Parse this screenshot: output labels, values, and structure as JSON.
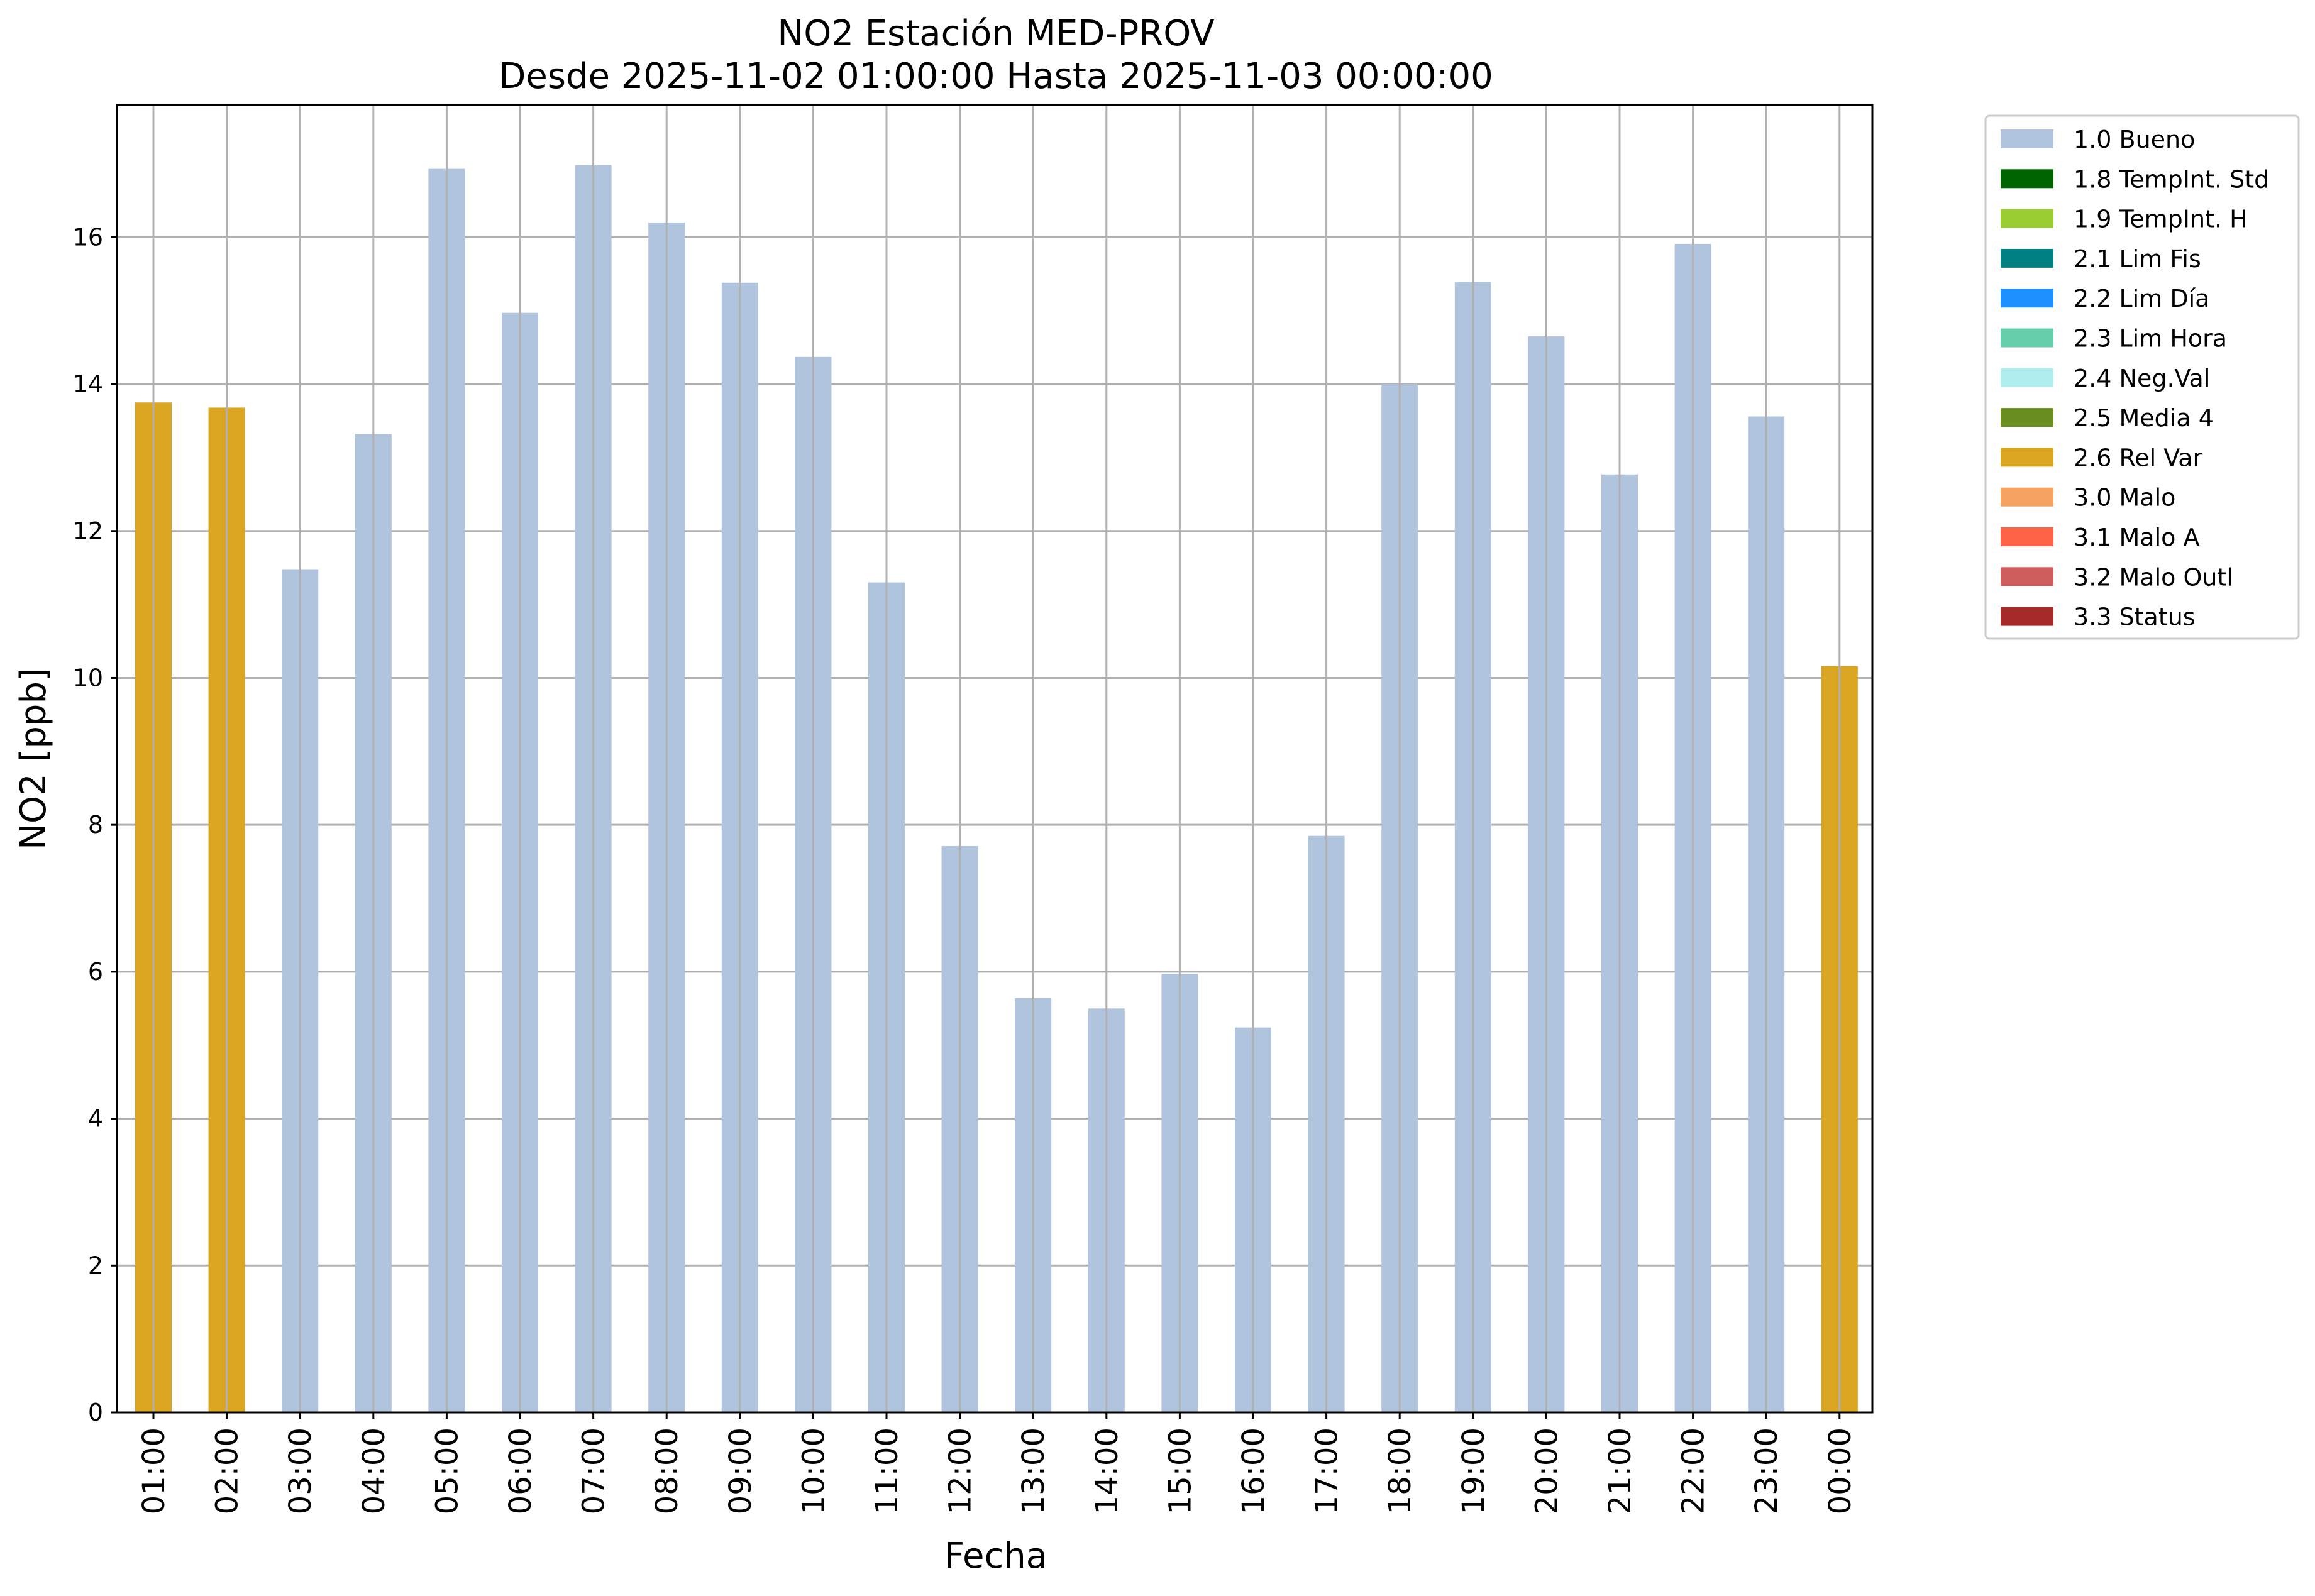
{
  "chart_data": {
    "type": "bar",
    "title": "NO2 Estación MED-PROV",
    "subtitle": "Desde 2025-11-02 01:00:00 Hasta 2025-11-03 00:00:00",
    "xlabel": "Fecha",
    "ylabel": "NO2 [ppb]",
    "ylim": [
      0,
      17.8
    ],
    "yticks": [
      0,
      2,
      4,
      6,
      8,
      10,
      12,
      14,
      16
    ],
    "grid": true,
    "legend_position": "outside-top-right",
    "categories": [
      "01:00",
      "02:00",
      "03:00",
      "04:00",
      "05:00",
      "06:00",
      "07:00",
      "08:00",
      "09:00",
      "10:00",
      "11:00",
      "12:00",
      "13:00",
      "14:00",
      "15:00",
      "16:00",
      "17:00",
      "18:00",
      "19:00",
      "20:00",
      "21:00",
      "22:00",
      "23:00",
      "00:00"
    ],
    "values": [
      13.75,
      13.68,
      11.48,
      13.32,
      16.93,
      14.97,
      16.98,
      16.2,
      15.38,
      14.37,
      11.3,
      7.71,
      5.64,
      5.5,
      5.97,
      5.24,
      7.85,
      14.0,
      15.39,
      14.65,
      12.77,
      15.91,
      13.56,
      10.16
    ],
    "flags": [
      "2.6 Rel Var",
      "2.6 Rel Var",
      "1.0 Bueno",
      "1.0 Bueno",
      "1.0 Bueno",
      "1.0 Bueno",
      "1.0 Bueno",
      "1.0 Bueno",
      "1.0 Bueno",
      "1.0 Bueno",
      "1.0 Bueno",
      "1.0 Bueno",
      "1.0 Bueno",
      "1.0 Bueno",
      "1.0 Bueno",
      "1.0 Bueno",
      "1.0 Bueno",
      "1.0 Bueno",
      "1.0 Bueno",
      "1.0 Bueno",
      "1.0 Bueno",
      "1.0 Bueno",
      "1.0 Bueno",
      "2.6 Rel Var"
    ],
    "legend": [
      {
        "label": "1.0 Bueno",
        "color": "#b0c4de"
      },
      {
        "label": "1.8 TempInt. Std",
        "color": "#006400"
      },
      {
        "label": "1.9 TempInt. H",
        "color": "#9acd32"
      },
      {
        "label": "2.1 Lim Fis",
        "color": "#008080"
      },
      {
        "label": "2.2 Lim Día",
        "color": "#1e90ff"
      },
      {
        "label": "2.3 Lim Hora",
        "color": "#66cdaa"
      },
      {
        "label": "2.4 Neg.Val",
        "color": "#afeeee"
      },
      {
        "label": "2.5 Media 4",
        "color": "#6b8e23"
      },
      {
        "label": "2.6 Rel Var",
        "color": "#daa520"
      },
      {
        "label": "3.0 Malo",
        "color": "#f4a460"
      },
      {
        "label": "3.1 Malo A",
        "color": "#ff6347"
      },
      {
        "label": "3.2 Malo Outl",
        "color": "#cd5c5c"
      },
      {
        "label": "3.3 Status",
        "color": "#a52a2a"
      }
    ]
  }
}
